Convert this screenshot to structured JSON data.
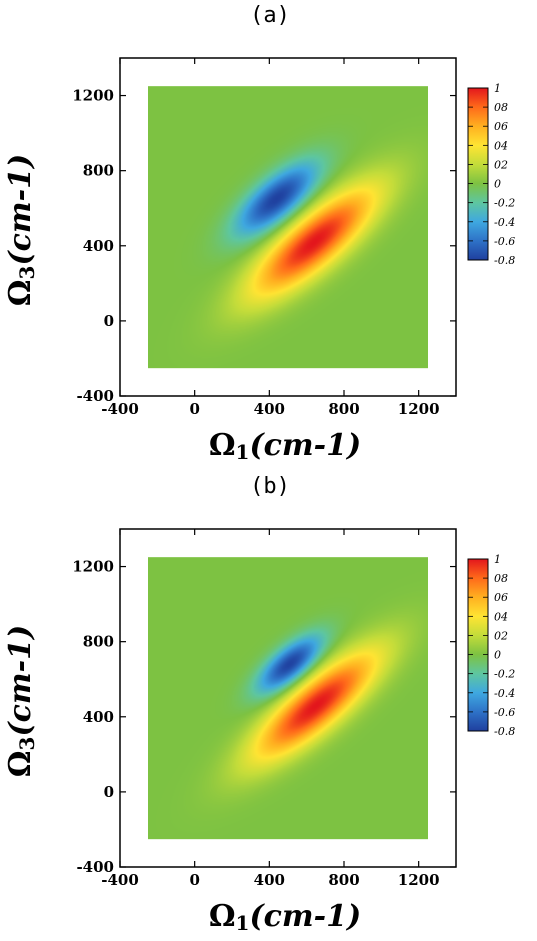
{
  "chart_data": [
    {
      "type": "heatmap",
      "panel_label": "(a)",
      "xlabel": "Ω1(cm-1)",
      "xlabel_parts": {
        "main": "Ω",
        "sub": "1",
        "unit": "(cm-1)"
      },
      "ylabel": "Ω3(cm-1)",
      "ylabel_parts": {
        "main": "Ω",
        "sub": "3",
        "unit": "(cm-1)"
      },
      "xlim": [
        -400,
        1400
      ],
      "ylim": [
        -400,
        1400
      ],
      "xticks": [
        -400,
        0,
        400,
        800,
        1200
      ],
      "yticks": [
        -400,
        0,
        400,
        800,
        1200
      ],
      "data_extent": [
        -250,
        1250
      ],
      "colorbar": {
        "range": [
          -0.8,
          1
        ],
        "ticks": [
          1,
          0.8,
          0.6,
          0.4,
          0.2,
          0,
          -0.2,
          -0.4,
          -0.6,
          -0.8
        ],
        "tick_labels": [
          "1",
          "0.8",
          "0.6",
          "0.4",
          "0.2",
          "0",
          "-0.2",
          "-0.4",
          "-0.6",
          "-0.8"
        ],
        "display_labels": [
          "1",
          "08",
          "06",
          "04",
          "02",
          "0",
          "-0.2",
          "-0.4",
          "-0.6",
          "-0.8"
        ]
      },
      "features": [
        {
          "kind": "peak",
          "sign": "positive",
          "center": [
            640,
            420
          ],
          "amplitude": 1.0,
          "sigma_major": 300,
          "sigma_minor": 95,
          "orientation_deg": 40
        },
        {
          "kind": "peak",
          "sign": "negative",
          "center": [
            440,
            650
          ],
          "amplitude": -0.8,
          "sigma_major": 190,
          "sigma_minor": 75,
          "orientation_deg": 40
        }
      ],
      "background_value": 0
    },
    {
      "type": "heatmap",
      "panel_label": "(b)",
      "xlabel": "Ω1(cm-1)",
      "xlabel_parts": {
        "main": "Ω",
        "sub": "1",
        "unit": "(cm-1)"
      },
      "ylabel": "Ω3(cm-1)",
      "ylabel_parts": {
        "main": "Ω",
        "sub": "3",
        "unit": "(cm-1)"
      },
      "xlim": [
        -400,
        1400
      ],
      "ylim": [
        -400,
        1400
      ],
      "xticks": [
        -400,
        0,
        400,
        800,
        1200
      ],
      "yticks": [
        -400,
        0,
        400,
        800,
        1200
      ],
      "data_extent": [
        -250,
        1250
      ],
      "colorbar": {
        "range": [
          -0.8,
          1
        ],
        "ticks": [
          1,
          0.8,
          0.6,
          0.4,
          0.2,
          0,
          -0.2,
          -0.4,
          -0.6,
          -0.8
        ],
        "tick_labels": [
          "1",
          "0.8",
          "0.6",
          "0.4",
          "0.2",
          "0",
          "-0.2",
          "-0.4",
          "-0.6",
          "-0.8"
        ],
        "display_labels": [
          "1",
          "08",
          "06",
          "04",
          "02",
          "0",
          "-0.2",
          "-0.4",
          "-0.6",
          "-0.8"
        ]
      },
      "features": [
        {
          "kind": "peak",
          "sign": "positive",
          "center": [
            650,
            460
          ],
          "amplitude": 1.0,
          "sigma_major": 300,
          "sigma_minor": 90,
          "orientation_deg": 40
        },
        {
          "kind": "peak",
          "sign": "negative",
          "center": [
            510,
            680
          ],
          "amplitude": -0.8,
          "sigma_major": 150,
          "sigma_minor": 60,
          "orientation_deg": 40
        }
      ],
      "background_value": 0
    }
  ],
  "colorscale": {
    "stops": [
      {
        "value": -0.8,
        "color": "#1f3f9e"
      },
      {
        "value": -0.6,
        "color": "#2e72c7"
      },
      {
        "value": -0.4,
        "color": "#3fa8e0"
      },
      {
        "value": -0.2,
        "color": "#5ec6a0"
      },
      {
        "value": 0,
        "color": "#7dc242"
      },
      {
        "value": 0.2,
        "color": "#c3dc3a"
      },
      {
        "value": 0.4,
        "color": "#ffe433"
      },
      {
        "value": 0.6,
        "color": "#ffb020"
      },
      {
        "value": 0.8,
        "color": "#ff6a1a"
      },
      {
        "value": 1,
        "color": "#e3161c"
      }
    ]
  }
}
